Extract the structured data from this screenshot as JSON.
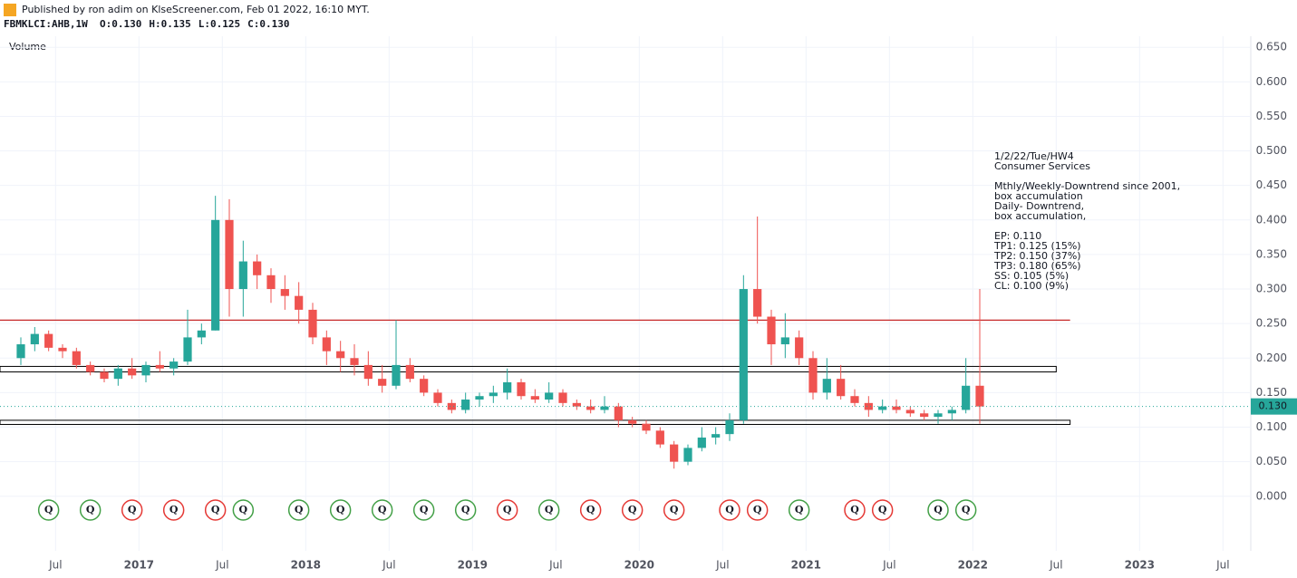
{
  "header": {
    "published": "Published by ron adim on KlseScreener.com, Feb 01 2022, 16:10 MYT.",
    "symbol": "FBMKLCI:AHB,1W",
    "ohlc": [
      {
        "key": "O:",
        "value": "0.130"
      },
      {
        "key": "H:",
        "value": "0.135"
      },
      {
        "key": "L:",
        "value": "0.125"
      },
      {
        "key": "C:",
        "value": "0.130"
      }
    ],
    "volume_label": "Volume"
  },
  "chart_data": {
    "type": "candlestick",
    "up_color": "#26a69a",
    "down_color": "#ef5350",
    "grid": true,
    "xlim": [
      "2016-03",
      "2023-09"
    ],
    "xticks": [
      {
        "value": "2016-07",
        "label": "Jul"
      },
      {
        "value": "2017-01",
        "label": "2017"
      },
      {
        "value": "2017-07",
        "label": "Jul"
      },
      {
        "value": "2018-01",
        "label": "2018"
      },
      {
        "value": "2018-07",
        "label": "Jul"
      },
      {
        "value": "2019-01",
        "label": "2019"
      },
      {
        "value": "2019-07",
        "label": "Jul"
      },
      {
        "value": "2020-01",
        "label": "2020"
      },
      {
        "value": "2020-07",
        "label": "Jul"
      },
      {
        "value": "2021-01",
        "label": "2021"
      },
      {
        "value": "2021-07",
        "label": "Jul"
      },
      {
        "value": "2022-01",
        "label": "2022"
      },
      {
        "value": "2022-07",
        "label": "Jul"
      },
      {
        "value": "2023-01",
        "label": "2023"
      },
      {
        "value": "2023-07",
        "label": "Jul"
      }
    ],
    "ylim": [
      -0.079,
      0.666
    ],
    "yticks": [
      {
        "value": 0,
        "label": "0.000"
      },
      {
        "value": 0.05,
        "label": "0.050"
      },
      {
        "value": 0.1,
        "label": "0.100"
      },
      {
        "value": 0.15,
        "label": "0.150"
      },
      {
        "value": 0.2,
        "label": "0.200"
      },
      {
        "value": 0.25,
        "label": "0.250"
      },
      {
        "value": 0.3,
        "label": "0.300"
      },
      {
        "value": 0.35,
        "label": "0.350"
      },
      {
        "value": 0.4,
        "label": "0.400"
      },
      {
        "value": 0.45,
        "label": "0.450"
      },
      {
        "value": 0.5,
        "label": "0.500"
      },
      {
        "value": 0.55,
        "label": "0.550"
      },
      {
        "value": 0.6,
        "label": "0.600"
      },
      {
        "value": 0.65,
        "label": "0.650"
      }
    ],
    "x": [
      "2016-04",
      "2016-05",
      "2016-06",
      "2016-07",
      "2016-08",
      "2016-09",
      "2016-10",
      "2016-11",
      "2016-12",
      "2017-01",
      "2017-02",
      "2017-03",
      "2017-04",
      "2017-05",
      "2017-06",
      "2017-07",
      "2017-08",
      "2017-09",
      "2017-10",
      "2017-11",
      "2017-12",
      "2018-01",
      "2018-02",
      "2018-03",
      "2018-04",
      "2018-05",
      "2018-06",
      "2018-07",
      "2018-08",
      "2018-09",
      "2018-10",
      "2018-11",
      "2018-12",
      "2019-01",
      "2019-02",
      "2019-03",
      "2019-04",
      "2019-05",
      "2019-06",
      "2019-07",
      "2019-08",
      "2019-09",
      "2019-10",
      "2019-11",
      "2019-12",
      "2020-01",
      "2020-02",
      "2020-03",
      "2020-04",
      "2020-05",
      "2020-06",
      "2020-07",
      "2020-08",
      "2020-09",
      "2020-10",
      "2020-11",
      "2020-12",
      "2021-01",
      "2021-02",
      "2021-03",
      "2021-04",
      "2021-05",
      "2021-06",
      "2021-07",
      "2021-08",
      "2021-09",
      "2021-10",
      "2021-11",
      "2021-12",
      "2022-01"
    ],
    "open": [
      0.2,
      0.22,
      0.235,
      0.215,
      0.21,
      0.19,
      0.18,
      0.17,
      0.185,
      0.175,
      0.19,
      0.185,
      0.195,
      0.23,
      0.24,
      0.4,
      0.3,
      0.34,
      0.32,
      0.3,
      0.29,
      0.27,
      0.23,
      0.21,
      0.2,
      0.19,
      0.17,
      0.16,
      0.19,
      0.17,
      0.15,
      0.135,
      0.125,
      0.14,
      0.145,
      0.15,
      0.165,
      0.145,
      0.14,
      0.15,
      0.135,
      0.13,
      0.125,
      0.13,
      0.11,
      0.105,
      0.095,
      0.075,
      0.05,
      0.07,
      0.085,
      0.09,
      0.11,
      0.3,
      0.26,
      0.22,
      0.23,
      0.2,
      0.15,
      0.17,
      0.145,
      0.135,
      0.125,
      0.13,
      0.125,
      0.12,
      0.115,
      0.12,
      0.125,
      0.16
    ],
    "high": [
      0.23,
      0.245,
      0.24,
      0.22,
      0.215,
      0.195,
      0.185,
      0.19,
      0.2,
      0.195,
      0.21,
      0.2,
      0.27,
      0.25,
      0.435,
      0.43,
      0.37,
      0.35,
      0.33,
      0.32,
      0.31,
      0.28,
      0.24,
      0.225,
      0.22,
      0.21,
      0.19,
      0.255,
      0.2,
      0.175,
      0.155,
      0.14,
      0.15,
      0.15,
      0.16,
      0.185,
      0.17,
      0.155,
      0.165,
      0.155,
      0.14,
      0.14,
      0.145,
      0.135,
      0.115,
      0.11,
      0.1,
      0.08,
      0.075,
      0.1,
      0.1,
      0.12,
      0.32,
      0.405,
      0.27,
      0.265,
      0.24,
      0.21,
      0.2,
      0.19,
      0.155,
      0.145,
      0.14,
      0.14,
      0.13,
      0.125,
      0.125,
      0.13,
      0.2,
      0.3
    ],
    "low": [
      0.19,
      0.21,
      0.21,
      0.2,
      0.185,
      0.175,
      0.165,
      0.16,
      0.17,
      0.165,
      0.18,
      0.175,
      0.19,
      0.22,
      0.24,
      0.26,
      0.26,
      0.3,
      0.28,
      0.27,
      0.25,
      0.22,
      0.19,
      0.18,
      0.175,
      0.16,
      0.15,
      0.155,
      0.165,
      0.145,
      0.13,
      0.12,
      0.12,
      0.13,
      0.135,
      0.14,
      0.14,
      0.135,
      0.135,
      0.13,
      0.125,
      0.12,
      0.12,
      0.1,
      0.1,
      0.09,
      0.07,
      0.04,
      0.045,
      0.065,
      0.075,
      0.08,
      0.105,
      0.25,
      0.19,
      0.2,
      0.19,
      0.14,
      0.14,
      0.14,
      0.13,
      0.115,
      0.12,
      0.12,
      0.115,
      0.11,
      0.105,
      0.11,
      0.12,
      0.105
    ],
    "close": [
      0.22,
      0.235,
      0.215,
      0.21,
      0.19,
      0.18,
      0.17,
      0.185,
      0.175,
      0.19,
      0.185,
      0.195,
      0.23,
      0.24,
      0.4,
      0.3,
      0.34,
      0.32,
      0.3,
      0.29,
      0.27,
      0.23,
      0.21,
      0.2,
      0.19,
      0.17,
      0.16,
      0.19,
      0.17,
      0.15,
      0.135,
      0.125,
      0.14,
      0.145,
      0.15,
      0.165,
      0.145,
      0.14,
      0.15,
      0.135,
      0.13,
      0.125,
      0.13,
      0.11,
      0.105,
      0.095,
      0.075,
      0.05,
      0.07,
      0.085,
      0.09,
      0.11,
      0.3,
      0.26,
      0.22,
      0.23,
      0.2,
      0.15,
      0.17,
      0.145,
      0.135,
      0.125,
      0.13,
      0.125,
      0.12,
      0.115,
      0.12,
      0.125,
      0.16,
      0.13
    ],
    "levels": [
      {
        "low": 0.255,
        "high": 0.255,
        "x_end": "2022-08",
        "color": "#c62828"
      },
      {
        "low": 0.18,
        "high": 0.188,
        "x_end": "2022-07",
        "color": "#000000"
      },
      {
        "low": 0.104,
        "high": 0.11,
        "x_end": "2022-08",
        "color": "#000000"
      }
    ],
    "last": {
      "value": 0.13,
      "label": "0.130",
      "color": "#26a69a"
    },
    "events": [
      {
        "x": "2016-06",
        "label": "Q",
        "color": "#43a047"
      },
      {
        "x": "2016-09",
        "label": "Q",
        "color": "#43a047"
      },
      {
        "x": "2016-12",
        "label": "Q",
        "color": "#e53935"
      },
      {
        "x": "2017-03",
        "label": "Q",
        "color": "#e53935"
      },
      {
        "x": "2017-06",
        "label": "Q",
        "color": "#e53935"
      },
      {
        "x": "2017-08",
        "label": "Q",
        "color": "#43a047"
      },
      {
        "x": "2017-12",
        "label": "Q",
        "color": "#43a047"
      },
      {
        "x": "2018-03",
        "label": "Q",
        "color": "#43a047"
      },
      {
        "x": "2018-06",
        "label": "Q",
        "color": "#43a047"
      },
      {
        "x": "2018-09",
        "label": "Q",
        "color": "#43a047"
      },
      {
        "x": "2018-12",
        "label": "Q",
        "color": "#43a047"
      },
      {
        "x": "2019-03",
        "label": "Q",
        "color": "#e53935"
      },
      {
        "x": "2019-06",
        "label": "Q",
        "color": "#43a047"
      },
      {
        "x": "2019-09",
        "label": "Q",
        "color": "#e53935"
      },
      {
        "x": "2019-12",
        "label": "Q",
        "color": "#e53935"
      },
      {
        "x": "2020-03",
        "label": "Q",
        "color": "#e53935"
      },
      {
        "x": "2020-07",
        "label": "Q",
        "color": "#e53935"
      },
      {
        "x": "2020-09",
        "label": "Q",
        "color": "#e53935"
      },
      {
        "x": "2020-12",
        "label": "Q",
        "color": "#43a047"
      },
      {
        "x": "2021-04",
        "label": "Q",
        "color": "#e53935"
      },
      {
        "x": "2021-06",
        "label": "Q",
        "color": "#e53935"
      },
      {
        "x": "2021-10",
        "label": "Q",
        "color": "#43a047"
      },
      {
        "x": "2021-12",
        "label": "Q",
        "color": "#43a047"
      }
    ],
    "annotation": [
      [
        "1/2/22/Tue/HW4",
        "Consumer Services"
      ],
      [
        "Mthly/Weekly-Downtrend since 2001,",
        "box accumulation",
        "Daily- Downtrend,",
        "box accumulation,"
      ],
      [
        "EP: 0.110",
        "TP1: 0.125 (15%)",
        "TP2: 0.150 (37%)",
        "TP3: 0.180 (65%)",
        "SS: 0.105 (5%)",
        "CL: 0.100 (9%)"
      ]
    ]
  }
}
